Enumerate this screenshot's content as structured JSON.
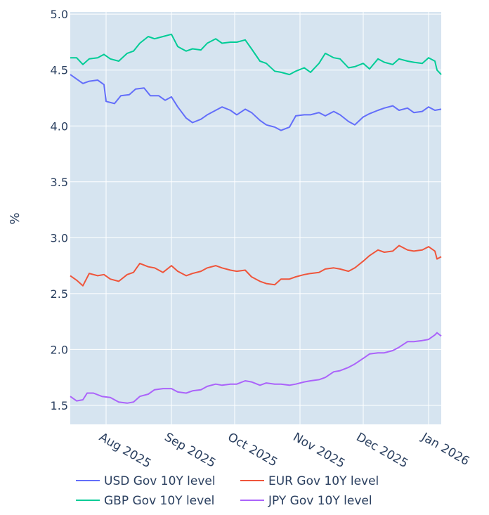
{
  "chart_data": {
    "type": "line",
    "title": "",
    "xlabel": "",
    "ylabel": "%",
    "ylim": [
      1.33,
      5.02
    ],
    "xlim": [
      "2025-07-15",
      "2026-01-07"
    ],
    "yticks": [
      1.5,
      2.0,
      2.5,
      3.0,
      3.5,
      4.0,
      4.5,
      5.0
    ],
    "ytick_labels": [
      "1.5",
      "2.0",
      "2.5",
      "3.0",
      "3.5",
      "4.0",
      "4.5",
      "5.0"
    ],
    "xticks": [
      "2025-08-01",
      "2025-09-01",
      "2025-10-01",
      "2025-11-01",
      "2025-12-01",
      "2026-01-01"
    ],
    "xtick_labels": [
      "Aug 2025",
      "Sep 2025",
      "Oct 2025",
      "Nov 2025",
      "Dec 2025",
      "Jan 2026"
    ],
    "grid": true,
    "legend_position": "bottom",
    "series": [
      {
        "name": "USD Gov 10Y level",
        "color": "#636efa",
        "points": [
          [
            "2025-07-15",
            4.46
          ],
          [
            "2025-07-18",
            4.42
          ],
          [
            "2025-07-21",
            4.38
          ],
          [
            "2025-07-24",
            4.4
          ],
          [
            "2025-07-28",
            4.41
          ],
          [
            "2025-07-31",
            4.37
          ],
          [
            "2025-08-01",
            4.22
          ],
          [
            "2025-08-05",
            4.2
          ],
          [
            "2025-08-08",
            4.27
          ],
          [
            "2025-08-12",
            4.28
          ],
          [
            "2025-08-15",
            4.33
          ],
          [
            "2025-08-19",
            4.34
          ],
          [
            "2025-08-22",
            4.27
          ],
          [
            "2025-08-26",
            4.27
          ],
          [
            "2025-08-29",
            4.23
          ],
          [
            "2025-09-01",
            4.26
          ],
          [
            "2025-09-04",
            4.17
          ],
          [
            "2025-09-08",
            4.07
          ],
          [
            "2025-09-11",
            4.03
          ],
          [
            "2025-09-15",
            4.06
          ],
          [
            "2025-09-18",
            4.1
          ],
          [
            "2025-09-22",
            4.14
          ],
          [
            "2025-09-25",
            4.17
          ],
          [
            "2025-09-29",
            4.14
          ],
          [
            "2025-10-02",
            4.1
          ],
          [
            "2025-10-06",
            4.15
          ],
          [
            "2025-10-09",
            4.12
          ],
          [
            "2025-10-13",
            4.05
          ],
          [
            "2025-10-16",
            4.01
          ],
          [
            "2025-10-20",
            3.99
          ],
          [
            "2025-10-23",
            3.96
          ],
          [
            "2025-10-27",
            3.99
          ],
          [
            "2025-10-30",
            4.09
          ],
          [
            "2025-11-03",
            4.1
          ],
          [
            "2025-11-06",
            4.1
          ],
          [
            "2025-11-10",
            4.12
          ],
          [
            "2025-11-13",
            4.09
          ],
          [
            "2025-11-17",
            4.13
          ],
          [
            "2025-11-20",
            4.1
          ],
          [
            "2025-11-24",
            4.04
          ],
          [
            "2025-11-27",
            4.01
          ],
          [
            "2025-12-01",
            4.08
          ],
          [
            "2025-12-04",
            4.11
          ],
          [
            "2025-12-08",
            4.14
          ],
          [
            "2025-12-11",
            4.16
          ],
          [
            "2025-12-15",
            4.18
          ],
          [
            "2025-12-18",
            4.14
          ],
          [
            "2025-12-22",
            4.16
          ],
          [
            "2025-12-25",
            4.12
          ],
          [
            "2025-12-29",
            4.13
          ],
          [
            "2026-01-01",
            4.17
          ],
          [
            "2026-01-04",
            4.14
          ],
          [
            "2026-01-07",
            4.15
          ]
        ]
      },
      {
        "name": "EUR Gov 10Y level",
        "color": "#ef553b",
        "points": [
          [
            "2025-07-15",
            2.66
          ],
          [
            "2025-07-18",
            2.62
          ],
          [
            "2025-07-21",
            2.57
          ],
          [
            "2025-07-24",
            2.68
          ],
          [
            "2025-07-28",
            2.66
          ],
          [
            "2025-07-31",
            2.67
          ],
          [
            "2025-08-03",
            2.63
          ],
          [
            "2025-08-07",
            2.61
          ],
          [
            "2025-08-11",
            2.67
          ],
          [
            "2025-08-14",
            2.69
          ],
          [
            "2025-08-17",
            2.77
          ],
          [
            "2025-08-21",
            2.74
          ],
          [
            "2025-08-24",
            2.73
          ],
          [
            "2025-08-28",
            2.69
          ],
          [
            "2025-09-01",
            2.75
          ],
          [
            "2025-09-04",
            2.7
          ],
          [
            "2025-09-08",
            2.66
          ],
          [
            "2025-09-11",
            2.68
          ],
          [
            "2025-09-15",
            2.7
          ],
          [
            "2025-09-18",
            2.73
          ],
          [
            "2025-09-22",
            2.75
          ],
          [
            "2025-09-25",
            2.73
          ],
          [
            "2025-09-29",
            2.71
          ],
          [
            "2025-10-02",
            2.7
          ],
          [
            "2025-10-06",
            2.71
          ],
          [
            "2025-10-09",
            2.65
          ],
          [
            "2025-10-13",
            2.61
          ],
          [
            "2025-10-16",
            2.59
          ],
          [
            "2025-10-20",
            2.58
          ],
          [
            "2025-10-23",
            2.63
          ],
          [
            "2025-10-27",
            2.63
          ],
          [
            "2025-10-30",
            2.65
          ],
          [
            "2025-11-03",
            2.67
          ],
          [
            "2025-11-06",
            2.68
          ],
          [
            "2025-11-10",
            2.69
          ],
          [
            "2025-11-13",
            2.72
          ],
          [
            "2025-11-17",
            2.73
          ],
          [
            "2025-11-20",
            2.72
          ],
          [
            "2025-11-24",
            2.7
          ],
          [
            "2025-11-27",
            2.73
          ],
          [
            "2025-12-01",
            2.79
          ],
          [
            "2025-12-04",
            2.84
          ],
          [
            "2025-12-08",
            2.89
          ],
          [
            "2025-12-11",
            2.87
          ],
          [
            "2025-12-15",
            2.88
          ],
          [
            "2025-12-18",
            2.93
          ],
          [
            "2025-12-22",
            2.89
          ],
          [
            "2025-12-25",
            2.88
          ],
          [
            "2025-12-29",
            2.89
          ],
          [
            "2026-01-01",
            2.92
          ],
          [
            "2026-01-04",
            2.88
          ],
          [
            "2026-01-05",
            2.81
          ],
          [
            "2026-01-07",
            2.83
          ]
        ]
      },
      {
        "name": "GBP Gov 10Y level",
        "color": "#00cc96",
        "points": [
          [
            "2025-07-15",
            4.61
          ],
          [
            "2025-07-18",
            4.61
          ],
          [
            "2025-07-21",
            4.55
          ],
          [
            "2025-07-24",
            4.6
          ],
          [
            "2025-07-28",
            4.61
          ],
          [
            "2025-07-31",
            4.64
          ],
          [
            "2025-08-03",
            4.6
          ],
          [
            "2025-08-07",
            4.58
          ],
          [
            "2025-08-11",
            4.65
          ],
          [
            "2025-08-14",
            4.67
          ],
          [
            "2025-08-17",
            4.74
          ],
          [
            "2025-08-21",
            4.8
          ],
          [
            "2025-08-24",
            4.78
          ],
          [
            "2025-08-28",
            4.8
          ],
          [
            "2025-09-01",
            4.82
          ],
          [
            "2025-09-04",
            4.71
          ],
          [
            "2025-09-08",
            4.67
          ],
          [
            "2025-09-11",
            4.69
          ],
          [
            "2025-09-15",
            4.68
          ],
          [
            "2025-09-18",
            4.74
          ],
          [
            "2025-09-22",
            4.78
          ],
          [
            "2025-09-25",
            4.74
          ],
          [
            "2025-09-29",
            4.75
          ],
          [
            "2025-10-02",
            4.75
          ],
          [
            "2025-10-06",
            4.77
          ],
          [
            "2025-10-09",
            4.69
          ],
          [
            "2025-10-13",
            4.58
          ],
          [
            "2025-10-16",
            4.56
          ],
          [
            "2025-10-20",
            4.49
          ],
          [
            "2025-10-23",
            4.48
          ],
          [
            "2025-10-27",
            4.46
          ],
          [
            "2025-10-30",
            4.49
          ],
          [
            "2025-11-03",
            4.52
          ],
          [
            "2025-11-06",
            4.48
          ],
          [
            "2025-11-10",
            4.56
          ],
          [
            "2025-11-13",
            4.65
          ],
          [
            "2025-11-17",
            4.61
          ],
          [
            "2025-11-20",
            4.6
          ],
          [
            "2025-11-24",
            4.52
          ],
          [
            "2025-11-27",
            4.53
          ],
          [
            "2025-12-01",
            4.56
          ],
          [
            "2025-12-04",
            4.51
          ],
          [
            "2025-12-08",
            4.6
          ],
          [
            "2025-12-11",
            4.57
          ],
          [
            "2025-12-15",
            4.55
          ],
          [
            "2025-12-18",
            4.6
          ],
          [
            "2025-12-22",
            4.58
          ],
          [
            "2025-12-25",
            4.57
          ],
          [
            "2025-12-29",
            4.56
          ],
          [
            "2026-01-01",
            4.61
          ],
          [
            "2026-01-04",
            4.58
          ],
          [
            "2026-01-05",
            4.5
          ],
          [
            "2026-01-07",
            4.46
          ]
        ]
      },
      {
        "name": "JPY Gov 10Y level",
        "color": "#ab63fa",
        "points": [
          [
            "2025-07-15",
            1.58
          ],
          [
            "2025-07-18",
            1.54
          ],
          [
            "2025-07-21",
            1.55
          ],
          [
            "2025-07-23",
            1.61
          ],
          [
            "2025-07-26",
            1.61
          ],
          [
            "2025-07-30",
            1.58
          ],
          [
            "2025-08-03",
            1.57
          ],
          [
            "2025-08-07",
            1.53
          ],
          [
            "2025-08-11",
            1.52
          ],
          [
            "2025-08-14",
            1.53
          ],
          [
            "2025-08-17",
            1.58
          ],
          [
            "2025-08-21",
            1.6
          ],
          [
            "2025-08-24",
            1.64
          ],
          [
            "2025-08-28",
            1.65
          ],
          [
            "2025-09-01",
            1.65
          ],
          [
            "2025-09-04",
            1.62
          ],
          [
            "2025-09-08",
            1.61
          ],
          [
            "2025-09-11",
            1.63
          ],
          [
            "2025-09-15",
            1.64
          ],
          [
            "2025-09-18",
            1.67
          ],
          [
            "2025-09-22",
            1.69
          ],
          [
            "2025-09-25",
            1.68
          ],
          [
            "2025-09-29",
            1.69
          ],
          [
            "2025-10-02",
            1.69
          ],
          [
            "2025-10-06",
            1.72
          ],
          [
            "2025-10-09",
            1.71
          ],
          [
            "2025-10-13",
            1.68
          ],
          [
            "2025-10-16",
            1.7
          ],
          [
            "2025-10-20",
            1.69
          ],
          [
            "2025-10-23",
            1.69
          ],
          [
            "2025-10-27",
            1.68
          ],
          [
            "2025-10-30",
            1.69
          ],
          [
            "2025-11-03",
            1.71
          ],
          [
            "2025-11-06",
            1.72
          ],
          [
            "2025-11-10",
            1.73
          ],
          [
            "2025-11-13",
            1.75
          ],
          [
            "2025-11-17",
            1.8
          ],
          [
            "2025-11-20",
            1.81
          ],
          [
            "2025-11-24",
            1.84
          ],
          [
            "2025-11-27",
            1.87
          ],
          [
            "2025-12-01",
            1.92
          ],
          [
            "2025-12-04",
            1.96
          ],
          [
            "2025-12-08",
            1.97
          ],
          [
            "2025-12-11",
            1.97
          ],
          [
            "2025-12-15",
            1.99
          ],
          [
            "2025-12-18",
            2.02
          ],
          [
            "2025-12-22",
            2.07
          ],
          [
            "2025-12-25",
            2.07
          ],
          [
            "2025-12-29",
            2.08
          ],
          [
            "2026-01-01",
            2.09
          ],
          [
            "2026-01-04",
            2.13
          ],
          [
            "2026-01-05",
            2.15
          ],
          [
            "2026-01-07",
            2.12
          ]
        ]
      }
    ]
  }
}
